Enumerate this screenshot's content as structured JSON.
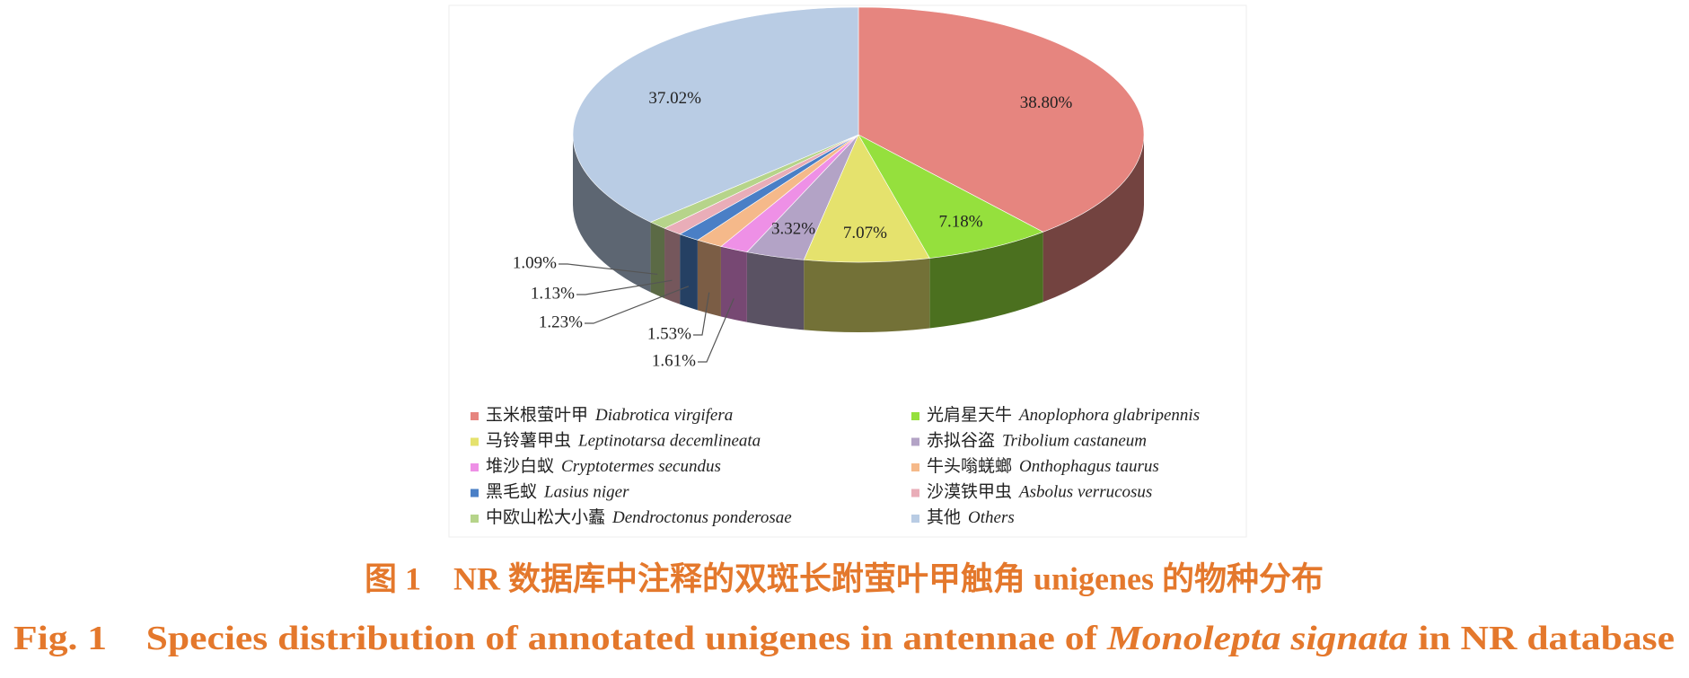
{
  "chart_data": {
    "type": "pie3d",
    "categories": [
      "玉米根萤叶甲",
      "光肩星天牛",
      "马铃薯甲虫",
      "赤拟谷盗",
      "堆沙白蚁",
      "牛头嗡蜣螂",
      "黑毛蚁",
      "沙漠铁甲虫",
      "中欧山松大小蠹",
      "其他"
    ],
    "species": [
      "Diabrotica virgifera",
      "Anoplophora glabripennis",
      "Leptinotarsa decemlineata",
      "Tribolium castaneum",
      "Cryptotermes secundus",
      "Onthophagus taurus",
      "Lasius niger",
      "Asbolus verrucosus",
      "Dendroctonus ponderosae",
      "Others"
    ],
    "values": [
      38.8,
      7.18,
      7.07,
      3.32,
      1.61,
      1.53,
      1.23,
      1.13,
      1.09,
      37.02
    ],
    "value_labels": [
      "38.80%",
      "7.18%",
      "7.07%",
      "3.32%",
      "1.61%",
      "1.53%",
      "1.23%",
      "1.13%",
      "1.09%",
      "37.02%"
    ],
    "colors": [
      "#e6857f",
      "#95e03d",
      "#e5e26d",
      "#b3a3c6",
      "#ee90e6",
      "#f5b98a",
      "#4a7fc6",
      "#e9adb8",
      "#b6d48a",
      "#b9cce4"
    ],
    "caption_cn": "图 1　NR 数据库中注释的双斑长跗萤叶甲触角 unigenes 的物种分布",
    "caption_en": [
      "Fig. 1　Species distribution of annotated unigenes in antennae of ",
      "Monolepta signata",
      " in NR database"
    ]
  }
}
